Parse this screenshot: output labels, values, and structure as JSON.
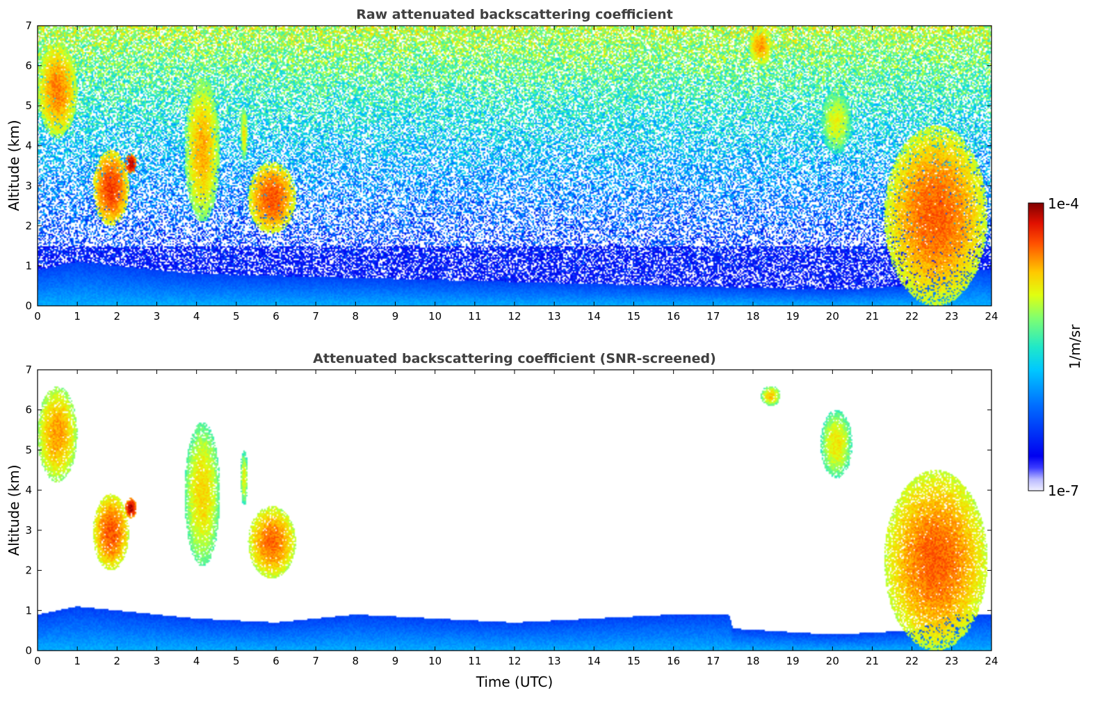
{
  "chart_data": [
    {
      "type": "heatmap",
      "id": "top",
      "title": "Raw attenuated backscattering coefficient",
      "xlabel": "",
      "ylabel": "Altitude (km)",
      "xlim": [
        0,
        24
      ],
      "ylim": [
        0,
        7
      ],
      "xticks": [
        0,
        1,
        2,
        3,
        4,
        5,
        6,
        7,
        8,
        9,
        10,
        11,
        12,
        13,
        14,
        15,
        16,
        17,
        18,
        19,
        20,
        21,
        22,
        23,
        24
      ],
      "yticks": [
        0,
        1,
        2,
        3,
        4,
        5,
        6,
        7
      ],
      "screened": false,
      "features": [
        {
          "kind": "cloud",
          "t": [
            0.0,
            1.0
          ],
          "z": [
            4.2,
            6.6
          ],
          "level": 0.82
        },
        {
          "kind": "cloud",
          "t": [
            1.4,
            2.3
          ],
          "z": [
            2.0,
            3.9
          ],
          "level": 0.88
        },
        {
          "kind": "cloud",
          "t": [
            2.2,
            2.5
          ],
          "z": [
            3.3,
            3.8
          ],
          "level": 0.97
        },
        {
          "kind": "cloud",
          "t": [
            3.7,
            4.6
          ],
          "z": [
            2.1,
            5.7
          ],
          "level": 0.78
        },
        {
          "kind": "cloud",
          "t": [
            5.1,
            5.3
          ],
          "z": [
            3.6,
            5.0
          ],
          "level": 0.72
        },
        {
          "kind": "cloud",
          "t": [
            5.3,
            6.5
          ],
          "z": [
            1.8,
            3.6
          ],
          "level": 0.86
        },
        {
          "kind": "cloud",
          "t": [
            17.9,
            18.5
          ],
          "z": [
            6.0,
            7.0
          ],
          "level": 0.8
        },
        {
          "kind": "cloud",
          "t": [
            19.7,
            20.5
          ],
          "z": [
            3.8,
            5.4
          ],
          "level": 0.7
        },
        {
          "kind": "cloud",
          "t": [
            21.3,
            23.9
          ],
          "z": [
            0.0,
            4.5
          ],
          "level": 0.85
        }
      ],
      "boundary_layer_top_km": [
        [
          0,
          0.9
        ],
        [
          1,
          1.1
        ],
        [
          2,
          1.0
        ],
        [
          4,
          0.8
        ],
        [
          6,
          0.75
        ],
        [
          8,
          0.7
        ],
        [
          10,
          0.65
        ],
        [
          12,
          0.6
        ],
        [
          14,
          0.55
        ],
        [
          16,
          0.5
        ],
        [
          18,
          0.45
        ],
        [
          20,
          0.4
        ],
        [
          22,
          0.5
        ],
        [
          23,
          0.9
        ],
        [
          24,
          0.9
        ]
      ]
    },
    {
      "type": "heatmap",
      "id": "bottom",
      "title": "Attenuated backscattering coefficient (SNR-screened)",
      "xlabel": "Time (UTC)",
      "ylabel": "Altitude (km)",
      "xlim": [
        0,
        24
      ],
      "ylim": [
        0,
        7
      ],
      "xticks": [
        0,
        1,
        2,
        3,
        4,
        5,
        6,
        7,
        8,
        9,
        10,
        11,
        12,
        13,
        14,
        15,
        16,
        17,
        18,
        19,
        20,
        21,
        22,
        23,
        24
      ],
      "yticks": [
        0,
        1,
        2,
        3,
        4,
        5,
        6,
        7
      ],
      "screened": true,
      "features": [
        {
          "kind": "cloud",
          "t": [
            0.0,
            1.0
          ],
          "z": [
            4.2,
            6.6
          ],
          "level": 0.8
        },
        {
          "kind": "cloud",
          "t": [
            1.4,
            2.3
          ],
          "z": [
            2.0,
            3.9
          ],
          "level": 0.86
        },
        {
          "kind": "cloud",
          "t": [
            2.2,
            2.5
          ],
          "z": [
            3.3,
            3.8
          ],
          "level": 0.97
        },
        {
          "kind": "cloud",
          "t": [
            3.7,
            4.6
          ],
          "z": [
            2.1,
            5.7
          ],
          "level": 0.74
        },
        {
          "kind": "cloud",
          "t": [
            5.1,
            5.3
          ],
          "z": [
            3.6,
            5.0
          ],
          "level": 0.7
        },
        {
          "kind": "cloud",
          "t": [
            5.3,
            6.5
          ],
          "z": [
            1.8,
            3.6
          ],
          "level": 0.84
        },
        {
          "kind": "cloud",
          "t": [
            18.2,
            18.7
          ],
          "z": [
            6.1,
            6.6
          ],
          "level": 0.75
        },
        {
          "kind": "cloud",
          "t": [
            19.7,
            20.5
          ],
          "z": [
            4.3,
            6.0
          ],
          "level": 0.72
        },
        {
          "kind": "cloud",
          "t": [
            21.3,
            23.9
          ],
          "z": [
            0.0,
            4.5
          ],
          "level": 0.85
        }
      ],
      "boundary_layer_top_km": [
        [
          0,
          0.9
        ],
        [
          1,
          1.1
        ],
        [
          2,
          1.0
        ],
        [
          4,
          0.8
        ],
        [
          6,
          0.7
        ],
        [
          8,
          0.9
        ],
        [
          10,
          0.8
        ],
        [
          12,
          0.7
        ],
        [
          14,
          0.8
        ],
        [
          16,
          0.9
        ],
        [
          17.4,
          0.9
        ],
        [
          17.5,
          0.55
        ],
        [
          20,
          0.4
        ],
        [
          22,
          0.5
        ],
        [
          23,
          0.9
        ],
        [
          24,
          0.9
        ]
      ]
    }
  ],
  "colorbar": {
    "label": "1/m/sr",
    "max_label": "1e-4",
    "min_label": "1e-7",
    "colormap": "jet",
    "range": [
      1e-07,
      0.0001
    ],
    "scale": "log"
  }
}
